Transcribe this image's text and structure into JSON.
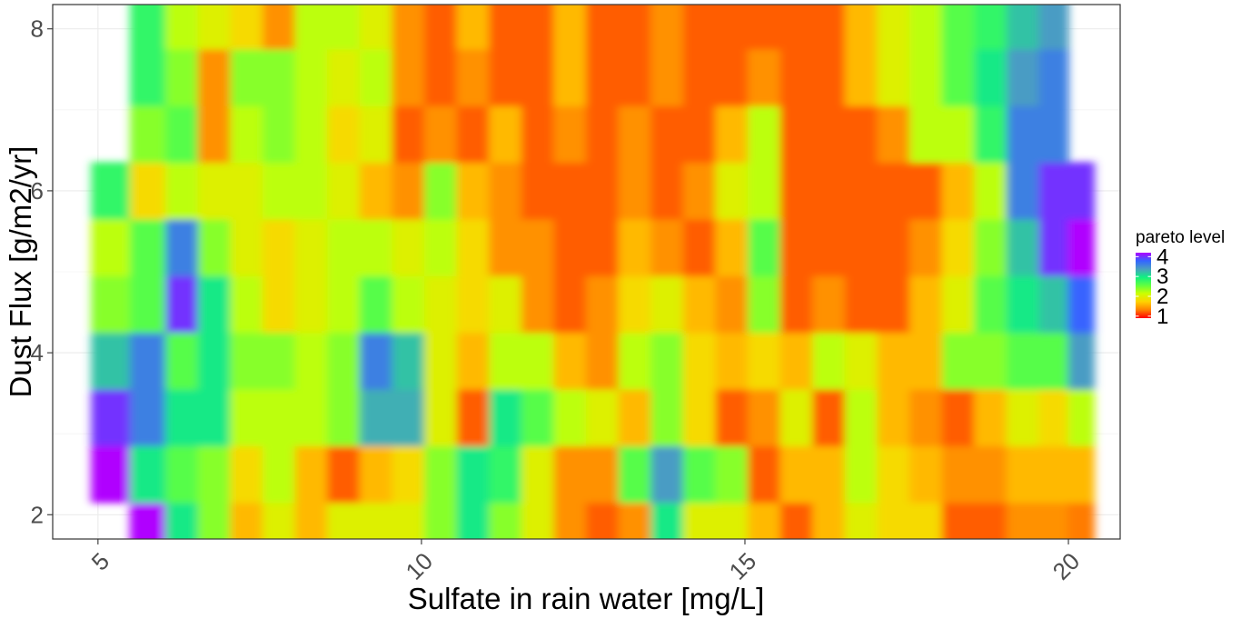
{
  "chart_data": {
    "type": "heatmap",
    "title": "",
    "xlabel": "Sulfate in rain water [mg/L]",
    "ylabel": "Dust Flux [g/m2/yr]",
    "xlim": [
      4.3,
      20.8
    ],
    "ylim": [
      1.7,
      8.3
    ],
    "x_ticks": [
      5,
      10,
      15,
      20
    ],
    "x_tick_labels": [
      "5",
      "10",
      "15",
      "20"
    ],
    "y_ticks": [
      2,
      4,
      6,
      8
    ],
    "y_tick_labels": [
      "2",
      "4",
      "6",
      "8"
    ],
    "grid": true,
    "legend": {
      "title": "pareto level",
      "position": "right",
      "range": [
        0.9,
        4.2
      ],
      "breaks": [
        1,
        2,
        3,
        4
      ],
      "labels": [
        "1",
        "2",
        "3",
        "4"
      ]
    },
    "color_scale": [
      "#ff0000",
      "#ff8000",
      "#ffd200",
      "#ccff00",
      "#60ff40",
      "#10f080",
      "#4aa0c0",
      "#3366ff",
      "#b000ff"
    ],
    "x_grid": [
      5.2,
      5.8,
      6.3,
      6.8,
      7.3,
      7.8,
      8.3,
      8.8,
      9.3,
      9.8,
      10.3,
      10.8,
      11.3,
      11.8,
      12.3,
      12.8,
      13.3,
      13.8,
      14.3,
      14.8,
      15.3,
      15.8,
      16.3,
      16.8,
      17.3,
      17.8,
      18.3,
      18.8,
      19.3,
      19.8,
      20.2
    ],
    "y_grid": [
      1.8,
      2.5,
      3.2,
      3.9,
      4.6,
      5.3,
      6.0,
      6.7,
      7.4,
      8.1,
      8.3
    ],
    "values": [
      [
        null,
        4.2,
        3.0,
        2.4,
        1.6,
        2.0,
        1.6,
        2.0,
        2.0,
        2.0,
        2.4,
        3.0,
        2.4,
        2.0,
        1.4,
        1.2,
        1.4,
        3.0,
        2.0,
        2.0,
        1.6,
        1.2,
        1.6,
        2.0,
        1.8,
        1.8,
        1.2,
        1.2,
        1.4,
        1.4,
        1.3
      ],
      [
        4.2,
        3.0,
        2.6,
        2.4,
        1.8,
        2.2,
        1.6,
        1.2,
        1.6,
        1.8,
        2.4,
        3.0,
        2.8,
        2.0,
        1.4,
        1.4,
        2.6,
        3.4,
        2.6,
        2.4,
        1.2,
        1.6,
        1.6,
        2.2,
        1.8,
        1.6,
        1.4,
        1.4,
        1.6,
        1.6,
        1.6
      ],
      [
        4.0,
        3.6,
        3.0,
        3.0,
        2.2,
        2.2,
        2.2,
        2.4,
        3.3,
        3.3,
        2.0,
        1.2,
        3.0,
        2.6,
        2.2,
        2.0,
        1.6,
        2.4,
        1.8,
        1.2,
        1.4,
        2.0,
        1.2,
        2.2,
        1.6,
        1.4,
        1.2,
        1.6,
        2.0,
        1.8,
        2.2
      ],
      [
        3.2,
        3.6,
        2.6,
        3.0,
        2.4,
        2.4,
        2.2,
        2.4,
        3.6,
        3.2,
        2.0,
        1.6,
        2.2,
        2.2,
        1.6,
        1.4,
        2.2,
        2.4,
        1.8,
        1.6,
        1.8,
        1.6,
        2.2,
        2.0,
        1.6,
        1.6,
        2.4,
        2.4,
        2.6,
        2.6,
        3.4
      ],
      [
        2.4,
        2.6,
        4.0,
        3.0,
        2.2,
        1.8,
        2.0,
        2.2,
        2.6,
        2.2,
        2.0,
        1.8,
        2.0,
        1.4,
        1.2,
        1.4,
        1.8,
        2.0,
        1.6,
        1.4,
        2.4,
        1.2,
        1.4,
        1.2,
        1.2,
        1.6,
        2.0,
        2.6,
        3.0,
        3.2,
        3.8
      ],
      [
        2.2,
        2.6,
        3.6,
        2.4,
        2.0,
        1.8,
        2.0,
        2.2,
        2.2,
        2.0,
        2.2,
        1.8,
        1.4,
        1.4,
        1.2,
        1.2,
        1.6,
        1.4,
        1.2,
        1.6,
        2.6,
        1.2,
        1.2,
        1.2,
        1.2,
        1.4,
        1.8,
        2.4,
        3.2,
        4.0,
        4.2
      ],
      [
        2.8,
        1.8,
        2.2,
        2.0,
        2.0,
        2.2,
        2.2,
        2.0,
        1.6,
        1.4,
        2.4,
        1.6,
        1.4,
        1.2,
        1.2,
        1.2,
        1.4,
        1.2,
        1.4,
        2.0,
        2.2,
        1.2,
        1.2,
        1.2,
        1.2,
        1.2,
        1.6,
        2.2,
        3.6,
        4.0,
        4.0
      ],
      [
        null,
        2.4,
        2.6,
        1.4,
        2.2,
        2.4,
        2.2,
        1.8,
        2.0,
        1.2,
        1.4,
        1.2,
        1.6,
        1.2,
        1.4,
        1.2,
        1.4,
        1.2,
        1.2,
        1.6,
        2.2,
        1.2,
        1.2,
        1.2,
        1.4,
        2.2,
        2.2,
        2.8,
        3.6,
        3.6,
        null
      ],
      [
        null,
        2.8,
        2.4,
        1.4,
        2.4,
        2.4,
        2.2,
        2.0,
        2.2,
        1.4,
        1.2,
        1.4,
        1.2,
        1.2,
        1.6,
        1.2,
        1.2,
        1.4,
        1.2,
        1.2,
        1.4,
        1.2,
        1.2,
        1.6,
        2.0,
        2.2,
        2.6,
        3.0,
        3.4,
        3.6,
        null
      ],
      [
        null,
        2.8,
        2.2,
        2.0,
        1.8,
        1.4,
        2.2,
        2.2,
        2.0,
        1.4,
        1.2,
        1.6,
        1.2,
        1.2,
        1.6,
        1.2,
        1.2,
        1.4,
        1.2,
        1.2,
        1.2,
        1.2,
        1.2,
        1.6,
        2.0,
        2.2,
        2.6,
        2.8,
        3.2,
        3.4,
        null
      ],
      [
        null,
        2.8,
        2.2,
        2.0,
        1.8,
        1.4,
        2.2,
        2.2,
        2.0,
        1.4,
        1.2,
        1.6,
        1.2,
        1.2,
        1.6,
        1.2,
        1.2,
        1.4,
        1.2,
        1.2,
        1.2,
        1.2,
        1.2,
        1.6,
        2.0,
        2.2,
        2.6,
        2.8,
        3.2,
        3.4,
        null
      ]
    ]
  }
}
